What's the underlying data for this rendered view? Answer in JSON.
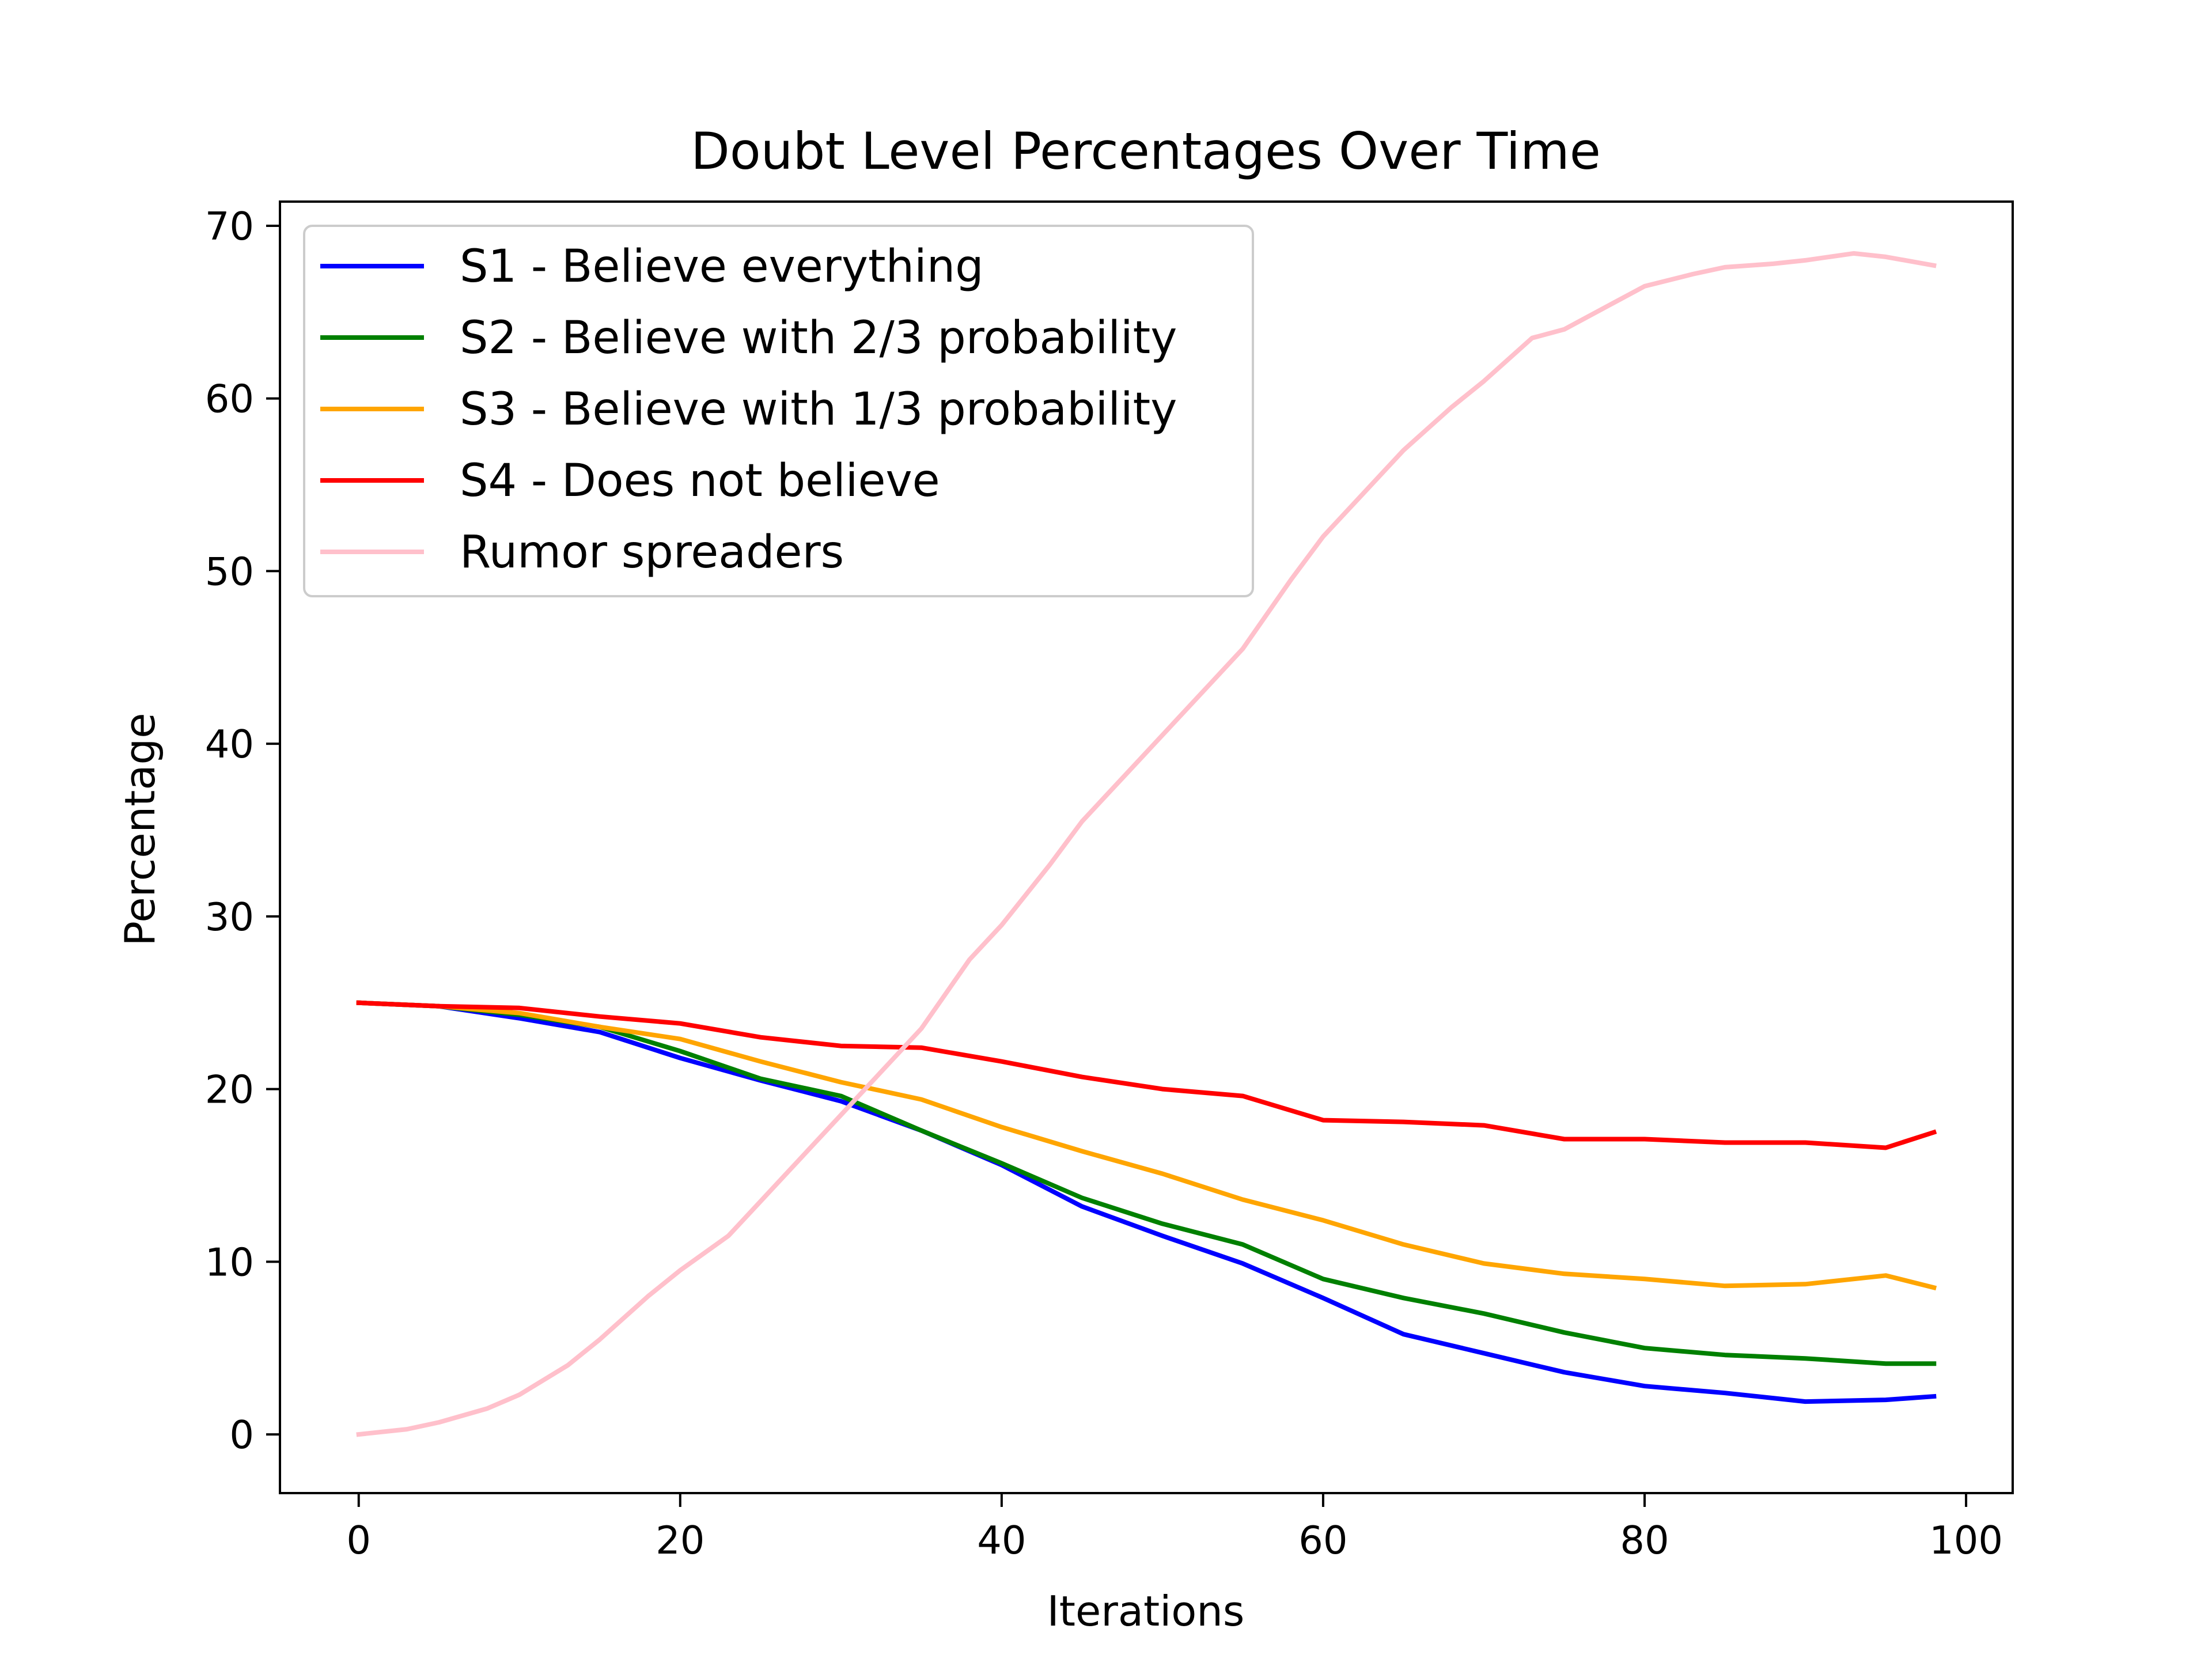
{
  "chart_data": {
    "type": "line",
    "title": "Doubt Level Percentages Over Time",
    "xlabel": "Iterations",
    "ylabel": "Percentage",
    "xlim": [
      -4.9,
      102.9
    ],
    "ylim": [
      -3.4,
      71.4
    ],
    "xticks": [
      0,
      20,
      40,
      60,
      80,
      100
    ],
    "yticks": [
      0,
      10,
      20,
      30,
      40,
      50,
      60,
      70
    ],
    "grid": false,
    "legend_position": "upper-left",
    "x_start": 0,
    "x_end": 98,
    "series": [
      {
        "name": "S1 - Believe everything",
        "color": "#0000ff",
        "x": [
          0,
          5,
          10,
          15,
          20,
          25,
          30,
          35,
          40,
          45,
          50,
          55,
          60,
          65,
          70,
          75,
          80,
          85,
          90,
          95,
          98
        ],
        "values": [
          25.0,
          24.8,
          24.1,
          23.3,
          21.8,
          20.5,
          19.3,
          17.6,
          15.6,
          13.2,
          11.5,
          9.9,
          7.9,
          5.8,
          4.7,
          3.6,
          2.8,
          2.4,
          1.9,
          2.0,
          2.2
        ]
      },
      {
        "name": "S2 - Believe with 2/3 probability",
        "color": "#008000",
        "x": [
          0,
          5,
          10,
          15,
          20,
          25,
          30,
          35,
          40,
          45,
          50,
          55,
          60,
          65,
          70,
          75,
          80,
          85,
          90,
          95,
          98
        ],
        "values": [
          25.0,
          24.8,
          24.3,
          23.6,
          22.2,
          20.6,
          19.6,
          17.6,
          15.7,
          13.7,
          12.2,
          11.0,
          9.0,
          7.9,
          7.0,
          5.9,
          5.0,
          4.6,
          4.4,
          4.1,
          4.1
        ]
      },
      {
        "name": "S3 - Believe with 1/3 probability",
        "color": "#ffa500",
        "x": [
          0,
          5,
          10,
          15,
          20,
          25,
          30,
          35,
          40,
          45,
          50,
          55,
          60,
          65,
          70,
          75,
          80,
          85,
          90,
          95,
          98
        ],
        "values": [
          25.0,
          24.8,
          24.4,
          23.6,
          22.9,
          21.6,
          20.4,
          19.4,
          17.8,
          16.4,
          15.1,
          13.6,
          12.4,
          11.0,
          9.9,
          9.3,
          9.0,
          8.6,
          8.7,
          9.2,
          8.5
        ]
      },
      {
        "name": "S4 - Does not believe",
        "color": "#ff0000",
        "x": [
          0,
          5,
          10,
          15,
          20,
          25,
          30,
          35,
          40,
          45,
          50,
          55,
          60,
          65,
          70,
          75,
          80,
          85,
          90,
          95,
          98
        ],
        "values": [
          25.0,
          24.8,
          24.7,
          24.2,
          23.8,
          23.0,
          22.5,
          22.4,
          21.6,
          20.7,
          20.0,
          19.6,
          18.2,
          18.1,
          17.9,
          17.1,
          17.1,
          16.9,
          16.9,
          16.6,
          17.5
        ]
      },
      {
        "name": "Rumor spreaders",
        "color": "#ffc0cb",
        "x": [
          0,
          3,
          5,
          8,
          10,
          13,
          15,
          18,
          20,
          23,
          25,
          28,
          30,
          33,
          35,
          38,
          40,
          43,
          45,
          48,
          50,
          53,
          55,
          58,
          60,
          63,
          65,
          68,
          70,
          73,
          75,
          78,
          80,
          83,
          85,
          88,
          90,
          93,
          95,
          98
        ],
        "values": [
          0.0,
          0.3,
          0.7,
          1.5,
          2.3,
          4.0,
          5.5,
          8.0,
          9.5,
          11.5,
          13.5,
          16.5,
          18.5,
          21.5,
          23.5,
          27.5,
          29.5,
          33.0,
          35.5,
          38.5,
          40.5,
          43.5,
          45.5,
          49.5,
          52.0,
          55.0,
          57.0,
          59.5,
          61.0,
          63.5,
          64.0,
          65.5,
          66.5,
          67.2,
          67.6,
          67.8,
          68.0,
          68.4,
          68.2,
          67.7
        ]
      }
    ]
  }
}
